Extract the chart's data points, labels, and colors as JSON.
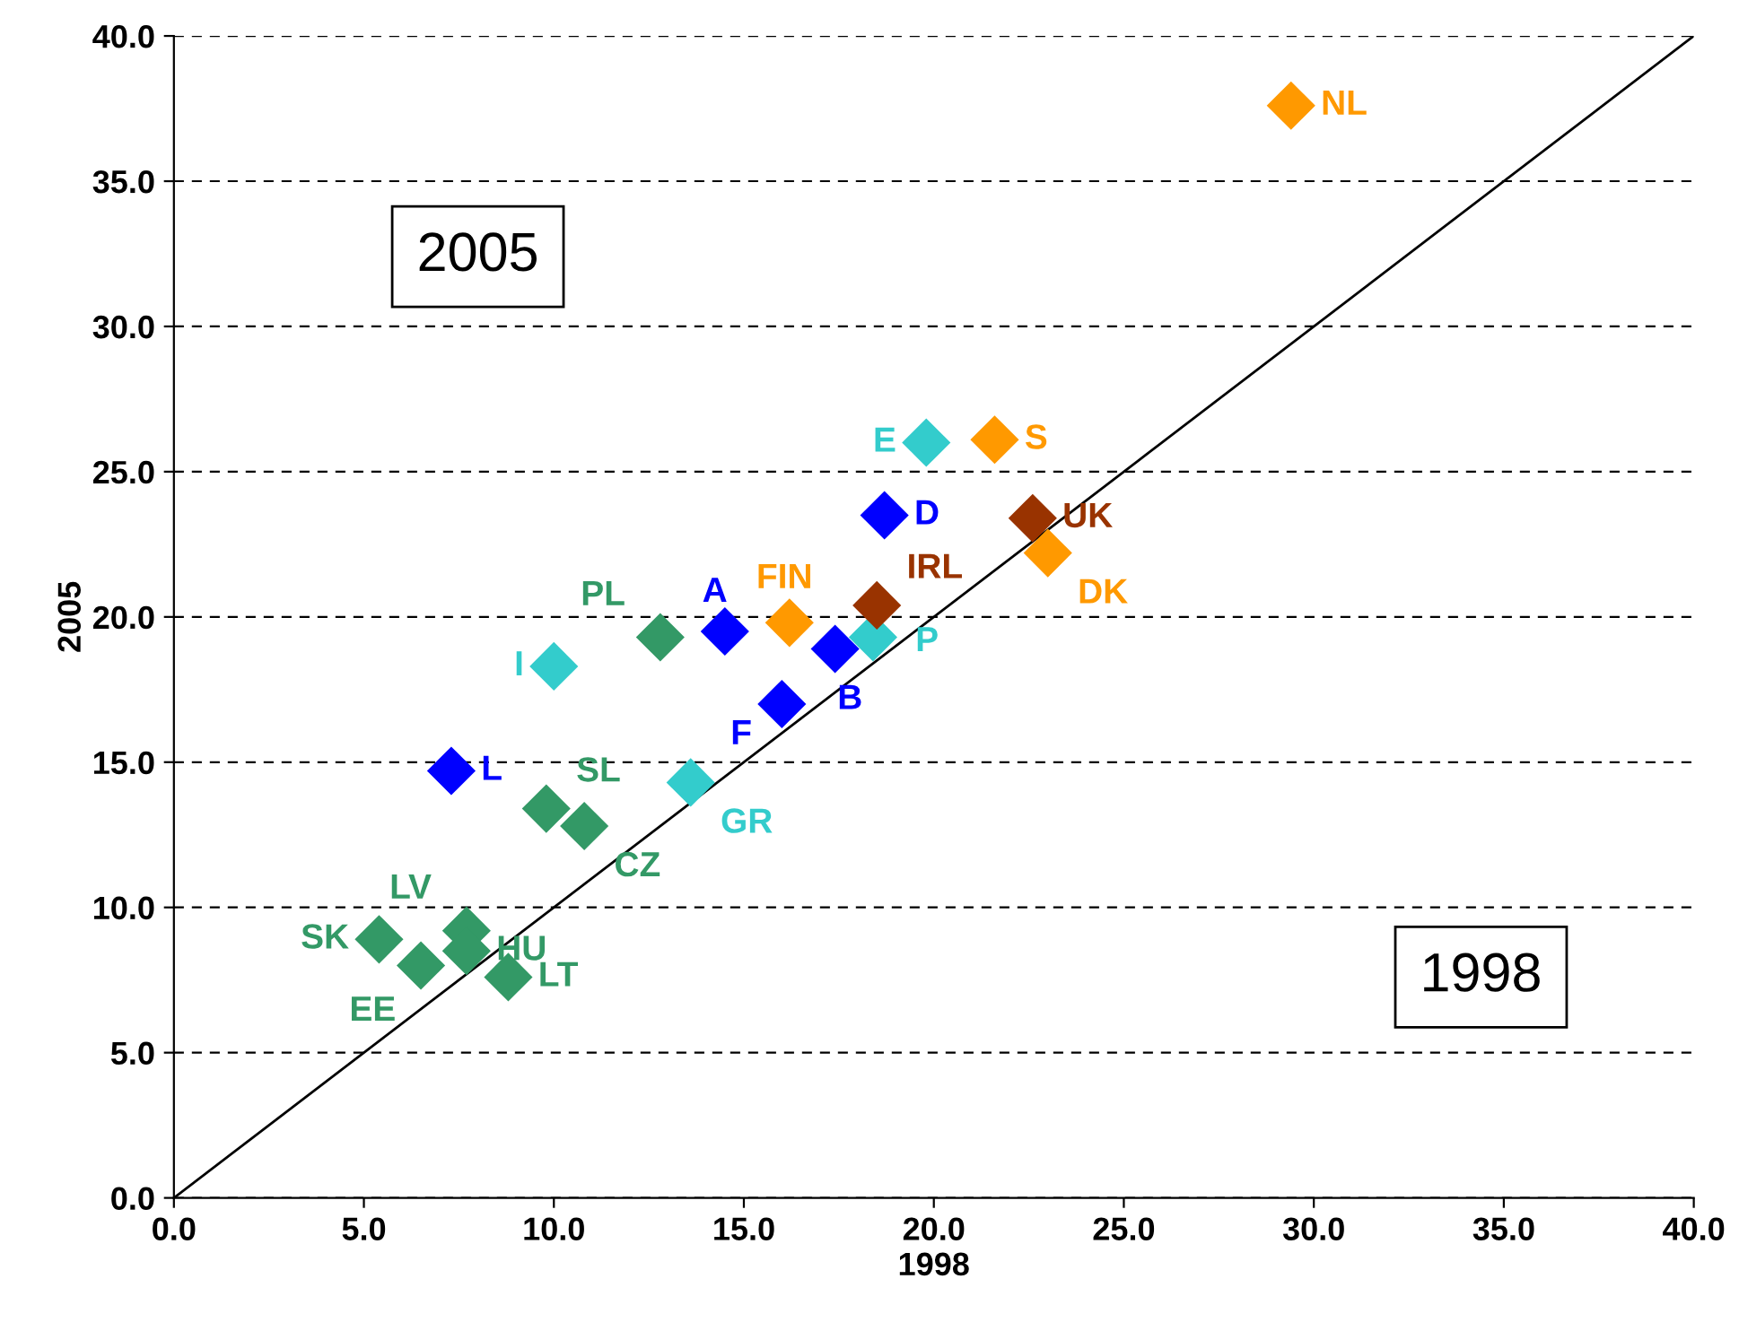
{
  "chart_data": {
    "type": "scatter",
    "xlabel": "1998",
    "ylabel": "2005",
    "marker": "diamond",
    "grid": "y",
    "legend": false,
    "xlim": [
      0,
      40
    ],
    "ylim": [
      0,
      40
    ],
    "xticks": [
      {
        "value": 0,
        "label": "0.0"
      },
      {
        "value": 5,
        "label": "5.0"
      },
      {
        "value": 10,
        "label": "10.0"
      },
      {
        "value": 15,
        "label": "15.0"
      },
      {
        "value": 20,
        "label": "20.0"
      },
      {
        "value": 25,
        "label": "25.0"
      },
      {
        "value": 30,
        "label": "30.0"
      },
      {
        "value": 35,
        "label": "35.0"
      },
      {
        "value": 40,
        "label": "40.0"
      }
    ],
    "yticks": [
      {
        "value": 0,
        "label": "0.0"
      },
      {
        "value": 5,
        "label": "5.0"
      },
      {
        "value": 10,
        "label": "10.0"
      },
      {
        "value": 15,
        "label": "15.0"
      },
      {
        "value": 20,
        "label": "20.0"
      },
      {
        "value": 25,
        "label": "25.0"
      },
      {
        "value": 30,
        "label": "30.0"
      },
      {
        "value": 35,
        "label": "35.0"
      },
      {
        "value": 40,
        "label": "40.0"
      }
    ],
    "series": [
      {
        "type": "line",
        "marker": "none",
        "color": "#000000",
        "x": [
          0,
          40
        ],
        "values": [
          0,
          40
        ]
      },
      {
        "color": "#ff9900",
        "x": [
          29.4,
          21.6,
          23.0,
          16.2
        ],
        "values": [
          37.6,
          26.1,
          22.2,
          19.8
        ]
      },
      {
        "color": "#33cccc",
        "x": [
          19.8,
          18.4,
          10.0,
          13.6
        ],
        "values": [
          26.0,
          19.3,
          18.3,
          14.3
        ]
      },
      {
        "color": "#0000ff",
        "x": [
          18.7,
          14.5,
          17.4,
          16.0,
          7.3
        ],
        "values": [
          23.5,
          19.5,
          18.9,
          17.0,
          14.7
        ]
      },
      {
        "color": "#993300",
        "x": [
          22.6,
          18.5
        ],
        "values": [
          23.4,
          20.4
        ]
      },
      {
        "color": "#339966",
        "x": [
          12.8,
          9.8,
          10.8,
          5.4,
          7.7,
          7.7,
          6.5,
          8.8
        ],
        "values": [
          19.3,
          13.4,
          12.8,
          8.9,
          9.2,
          8.5,
          8.0,
          7.6
        ]
      }
    ],
    "annotations": [
      {
        "text": "NL",
        "x": 29.4,
        "y": 37.6
      },
      {
        "text": "S",
        "x": 21.6,
        "y": 26.1
      },
      {
        "text": "DK",
        "x": 23.0,
        "y": 22.2
      },
      {
        "text": "FIN",
        "x": 16.2,
        "y": 19.8
      },
      {
        "text": "E",
        "x": 19.8,
        "y": 26.0
      },
      {
        "text": "P",
        "x": 18.4,
        "y": 19.3
      },
      {
        "text": "I",
        "x": 10.0,
        "y": 18.3
      },
      {
        "text": "GR",
        "x": 13.6,
        "y": 14.3
      },
      {
        "text": "D",
        "x": 18.7,
        "y": 23.5
      },
      {
        "text": "A",
        "x": 14.5,
        "y": 19.5
      },
      {
        "text": "B",
        "x": 17.4,
        "y": 18.9
      },
      {
        "text": "F",
        "x": 16.0,
        "y": 17.0
      },
      {
        "text": "L",
        "x": 7.3,
        "y": 14.7
      },
      {
        "text": "UK",
        "x": 22.6,
        "y": 23.4
      },
      {
        "text": "IRL",
        "x": 18.5,
        "y": 20.4
      },
      {
        "text": "PL",
        "x": 12.8,
        "y": 19.3
      },
      {
        "text": "SL",
        "x": 9.8,
        "y": 13.4
      },
      {
        "text": "CZ",
        "x": 10.8,
        "y": 12.8
      },
      {
        "text": "SK",
        "x": 5.4,
        "y": 8.9
      },
      {
        "text": "LV",
        "x": 7.7,
        "y": 9.2
      },
      {
        "text": "HU",
        "x": 7.7,
        "y": 8.5
      },
      {
        "text": "EE",
        "x": 6.5,
        "y": 8.0
      },
      {
        "text": "LT",
        "x": 8.8,
        "y": 7.6
      },
      "2005",
      "1998"
    ]
  }
}
